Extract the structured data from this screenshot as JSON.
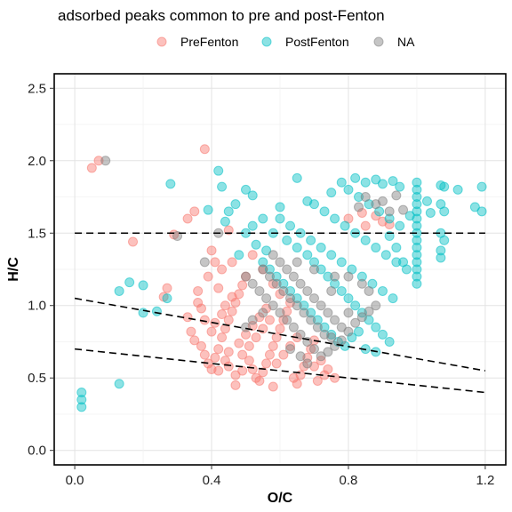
{
  "chart_data": {
    "type": "scatter",
    "title": "adsorbed peaks common to pre and post-Fenton",
    "xlabel": "O/C",
    "ylabel": "H/C",
    "xlim": [
      -0.06,
      1.26
    ],
    "ylim": [
      -0.1,
      2.6
    ],
    "xticks": [
      "0.0",
      "0.4",
      "0.8",
      "1.2"
    ],
    "yticks": [
      "0.0",
      "0.5",
      "1.0",
      "1.5",
      "2.0",
      "2.5"
    ],
    "grid": true,
    "legend_position": "top",
    "series": [
      {
        "name": "PreFenton",
        "color": "#F8766D",
        "points": [
          [
            0.05,
            1.95
          ],
          [
            0.07,
            2.0
          ],
          [
            0.38,
            2.08
          ],
          [
            0.17,
            1.44
          ],
          [
            0.29,
            1.49
          ],
          [
            0.27,
            1.12
          ],
          [
            0.26,
            1.06
          ],
          [
            0.33,
            1.6
          ],
          [
            0.35,
            1.65
          ],
          [
            0.4,
            1.38
          ],
          [
            0.45,
            1.52
          ],
          [
            0.42,
            1.12
          ],
          [
            0.36,
            1.02
          ],
          [
            0.33,
            0.92
          ],
          [
            0.34,
            0.82
          ],
          [
            0.35,
            0.76
          ],
          [
            0.37,
            0.72
          ],
          [
            0.38,
            0.66
          ],
          [
            0.39,
            0.6
          ],
          [
            0.4,
            0.56
          ],
          [
            0.41,
            0.64
          ],
          [
            0.42,
            0.7
          ],
          [
            0.43,
            0.78
          ],
          [
            0.44,
            0.84
          ],
          [
            0.45,
            0.9
          ],
          [
            0.46,
            0.96
          ],
          [
            0.47,
            1.02
          ],
          [
            0.48,
            1.08
          ],
          [
            0.49,
            1.14
          ],
          [
            0.5,
            1.2
          ],
          [
            0.51,
            0.62
          ],
          [
            0.52,
            0.56
          ],
          [
            0.53,
            0.5
          ],
          [
            0.54,
            0.48
          ],
          [
            0.55,
            0.54
          ],
          [
            0.56,
            0.6
          ],
          [
            0.57,
            0.66
          ],
          [
            0.58,
            0.72
          ],
          [
            0.59,
            0.78
          ],
          [
            0.6,
            0.84
          ],
          [
            0.61,
            0.9
          ],
          [
            0.62,
            0.96
          ],
          [
            0.63,
            1.02
          ],
          [
            0.64,
            0.5
          ],
          [
            0.65,
            0.46
          ],
          [
            0.66,
            0.52
          ],
          [
            0.67,
            0.58
          ],
          [
            0.68,
            0.64
          ],
          [
            0.69,
            0.7
          ],
          [
            0.7,
            0.76
          ],
          [
            0.72,
            0.62
          ],
          [
            0.74,
            0.56
          ],
          [
            0.76,
            0.5
          ],
          [
            0.47,
            0.45
          ],
          [
            0.58,
            0.44
          ],
          [
            0.4,
            0.82
          ],
          [
            0.41,
            0.88
          ],
          [
            0.43,
            0.94
          ],
          [
            0.44,
            1.0
          ],
          [
            0.46,
            1.06
          ],
          [
            0.48,
            0.74
          ],
          [
            0.5,
            0.8
          ],
          [
            0.52,
            0.86
          ],
          [
            0.54,
            0.92
          ],
          [
            0.56,
            0.98
          ],
          [
            0.45,
            0.68
          ],
          [
            0.49,
            0.66
          ],
          [
            0.51,
            0.72
          ],
          [
            0.53,
            0.78
          ],
          [
            0.55,
            0.84
          ],
          [
            0.57,
            0.9
          ],
          [
            0.59,
            0.6
          ],
          [
            0.61,
            0.66
          ],
          [
            0.63,
            0.72
          ],
          [
            0.65,
            0.78
          ],
          [
            0.38,
            0.9
          ],
          [
            0.37,
            0.98
          ],
          [
            0.36,
            1.1
          ],
          [
            0.39,
            1.2
          ],
          [
            0.41,
            1.3
          ],
          [
            0.43,
            1.25
          ],
          [
            0.46,
            1.3
          ],
          [
            0.52,
            1.35
          ],
          [
            0.55,
            1.25
          ],
          [
            0.58,
            1.15
          ],
          [
            0.6,
            1.08
          ],
          [
            0.45,
            0.58
          ],
          [
            0.47,
            0.52
          ],
          [
            0.49,
            0.55
          ],
          [
            0.44,
            0.62
          ],
          [
            0.42,
            0.55
          ],
          [
            0.7,
            0.58
          ],
          [
            0.73,
            0.52
          ],
          [
            0.71,
            0.48
          ],
          [
            0.84,
            1.64
          ],
          [
            0.88,
            1.62
          ],
          [
            0.9,
            1.58
          ],
          [
            0.8,
            1.6
          ],
          [
            0.92,
            1.56
          ],
          [
            0.85,
            1.55
          ]
        ]
      },
      {
        "name": "PostFenton",
        "color": "#00BFC4",
        "points": [
          [
            0.02,
            0.4
          ],
          [
            0.02,
            0.35
          ],
          [
            0.02,
            0.3
          ],
          [
            0.13,
            0.46
          ],
          [
            0.16,
            1.16
          ],
          [
            0.13,
            1.1
          ],
          [
            0.2,
            1.14
          ],
          [
            0.2,
            0.95
          ],
          [
            0.24,
            0.96
          ],
          [
            0.27,
            1.05
          ],
          [
            0.28,
            1.84
          ],
          [
            0.42,
            1.93
          ],
          [
            0.43,
            1.82
          ],
          [
            0.39,
            1.66
          ],
          [
            0.5,
            1.8
          ],
          [
            0.52,
            1.76
          ],
          [
            0.65,
            1.88
          ],
          [
            0.6,
            1.68
          ],
          [
            0.47,
            1.7
          ],
          [
            0.55,
            1.6
          ],
          [
            0.58,
            1.5
          ],
          [
            0.62,
            1.45
          ],
          [
            0.65,
            1.4
          ],
          [
            0.68,
            1.35
          ],
          [
            0.7,
            1.3
          ],
          [
            0.72,
            1.25
          ],
          [
            0.74,
            1.2
          ],
          [
            0.76,
            1.15
          ],
          [
            0.78,
            1.1
          ],
          [
            0.8,
            1.05
          ],
          [
            0.82,
            1.0
          ],
          [
            0.84,
            0.95
          ],
          [
            0.86,
            0.9
          ],
          [
            0.88,
            0.85
          ],
          [
            0.9,
            0.8
          ],
          [
            0.92,
            0.75
          ],
          [
            0.85,
            0.7
          ],
          [
            0.88,
            0.68
          ],
          [
            0.6,
            1.6
          ],
          [
            0.63,
            1.55
          ],
          [
            0.66,
            1.5
          ],
          [
            0.69,
            1.45
          ],
          [
            0.72,
            1.4
          ],
          [
            0.75,
            1.35
          ],
          [
            0.78,
            1.3
          ],
          [
            0.81,
            1.25
          ],
          [
            0.84,
            1.2
          ],
          [
            0.87,
            1.15
          ],
          [
            0.9,
            1.1
          ],
          [
            0.93,
            1.05
          ],
          [
            0.7,
            1.7
          ],
          [
            0.73,
            1.65
          ],
          [
            0.76,
            1.6
          ],
          [
            0.79,
            1.55
          ],
          [
            0.82,
            1.5
          ],
          [
            0.85,
            1.45
          ],
          [
            0.88,
            1.4
          ],
          [
            0.91,
            1.35
          ],
          [
            0.94,
            1.3
          ],
          [
            0.8,
            1.8
          ],
          [
            0.83,
            1.75
          ],
          [
            0.86,
            1.7
          ],
          [
            0.89,
            1.65
          ],
          [
            0.92,
            1.6
          ],
          [
            0.95,
            1.55
          ],
          [
            0.78,
            1.85
          ],
          [
            0.82,
            1.88
          ],
          [
            0.85,
            1.85
          ],
          [
            0.88,
            1.87
          ],
          [
            0.9,
            1.84
          ],
          [
            0.93,
            1.86
          ],
          [
            0.95,
            1.82
          ],
          [
            0.75,
            1.78
          ],
          [
            0.68,
            1.72
          ],
          [
            1.0,
            1.85
          ],
          [
            1.0,
            1.8
          ],
          [
            1.0,
            1.75
          ],
          [
            1.0,
            1.7
          ],
          [
            1.0,
            1.65
          ],
          [
            1.0,
            1.6
          ],
          [
            1.0,
            1.55
          ],
          [
            1.0,
            1.5
          ],
          [
            1.0,
            1.45
          ],
          [
            1.0,
            1.4
          ],
          [
            1.0,
            1.35
          ],
          [
            1.0,
            1.3
          ],
          [
            1.0,
            1.25
          ],
          [
            1.0,
            1.2
          ],
          [
            1.0,
            1.15
          ],
          [
            1.07,
            1.83
          ],
          [
            1.08,
            1.82
          ],
          [
            1.07,
            1.7
          ],
          [
            1.08,
            1.65
          ],
          [
            1.07,
            1.5
          ],
          [
            1.08,
            1.45
          ],
          [
            1.07,
            1.38
          ],
          [
            1.07,
            1.33
          ],
          [
            1.12,
            1.8
          ],
          [
            1.17,
            1.68
          ],
          [
            1.19,
            1.65
          ],
          [
            1.19,
            1.82
          ],
          [
            1.03,
            1.72
          ],
          [
            1.04,
            1.64
          ],
          [
            0.96,
            1.3
          ],
          [
            0.97,
            1.25
          ],
          [
            0.94,
            1.4
          ],
          [
            0.92,
            1.48
          ],
          [
            0.98,
            1.62
          ],
          [
            0.55,
            1.3
          ],
          [
            0.57,
            1.25
          ],
          [
            0.59,
            1.2
          ],
          [
            0.61,
            1.15
          ],
          [
            0.63,
            1.1
          ],
          [
            0.65,
            1.05
          ],
          [
            0.67,
            1.0
          ],
          [
            0.69,
            0.95
          ],
          [
            0.71,
            0.9
          ],
          [
            0.73,
            0.85
          ],
          [
            0.75,
            0.8
          ],
          [
            0.77,
            0.75
          ],
          [
            0.79,
            0.72
          ],
          [
            0.81,
            0.78
          ],
          [
            0.83,
            0.82
          ],
          [
            0.53,
            1.42
          ],
          [
            0.56,
            1.38
          ],
          [
            0.5,
            1.5
          ],
          [
            0.48,
            1.35
          ],
          [
            0.52,
            1.55
          ],
          [
            0.44,
            1.58
          ],
          [
            0.45,
            1.65
          ]
        ]
      },
      {
        "name": "NA",
        "color": "#7F7F7F",
        "points": [
          [
            0.09,
            2.0
          ],
          [
            0.3,
            1.48
          ],
          [
            0.42,
            1.5
          ],
          [
            0.38,
            1.3
          ],
          [
            0.5,
            1.2
          ],
          [
            0.52,
            1.15
          ],
          [
            0.54,
            1.1
          ],
          [
            0.56,
            1.05
          ],
          [
            0.58,
            1.0
          ],
          [
            0.6,
            0.95
          ],
          [
            0.62,
            0.9
          ],
          [
            0.64,
            0.85
          ],
          [
            0.66,
            0.8
          ],
          [
            0.68,
            0.75
          ],
          [
            0.7,
            0.7
          ],
          [
            0.72,
            0.65
          ],
          [
            0.74,
            0.68
          ],
          [
            0.76,
            0.72
          ],
          [
            0.78,
            0.76
          ],
          [
            0.55,
            1.25
          ],
          [
            0.57,
            1.2
          ],
          [
            0.59,
            1.15
          ],
          [
            0.61,
            1.1
          ],
          [
            0.63,
            1.05
          ],
          [
            0.65,
            1.0
          ],
          [
            0.67,
            0.95
          ],
          [
            0.69,
            0.9
          ],
          [
            0.71,
            0.85
          ],
          [
            0.73,
            0.8
          ],
          [
            0.75,
            0.78
          ],
          [
            0.6,
            1.3
          ],
          [
            0.62,
            1.25
          ],
          [
            0.64,
            1.2
          ],
          [
            0.66,
            1.15
          ],
          [
            0.68,
            1.1
          ],
          [
            0.7,
            1.05
          ],
          [
            0.72,
            1.0
          ],
          [
            0.74,
            0.95
          ],
          [
            0.76,
            0.9
          ],
          [
            0.78,
            0.85
          ],
          [
            0.8,
            0.82
          ],
          [
            0.82,
            0.88
          ],
          [
            0.84,
            0.92
          ],
          [
            0.86,
            0.96
          ],
          [
            0.88,
            1.0
          ],
          [
            0.86,
            1.1
          ],
          [
            0.84,
            1.15
          ],
          [
            0.8,
            1.2
          ],
          [
            0.85,
            1.75
          ],
          [
            0.9,
            1.72
          ],
          [
            0.94,
            1.76
          ],
          [
            0.92,
            1.65
          ],
          [
            0.88,
            1.7
          ],
          [
            0.83,
            1.68
          ],
          [
            0.96,
            1.66
          ],
          [
            0.58,
            1.35
          ],
          [
            0.65,
            1.3
          ],
          [
            0.7,
            1.25
          ],
          [
            0.76,
            1.2
          ],
          [
            0.52,
            0.9
          ],
          [
            0.5,
            0.85
          ],
          [
            0.63,
            0.7
          ],
          [
            0.66,
            0.65
          ],
          [
            0.68,
            0.6
          ],
          [
            0.8,
            0.95
          ],
          [
            0.75,
            1.1
          ],
          [
            0.55,
            0.95
          ]
        ]
      }
    ],
    "reference_lines": [
      {
        "x": [
          0.0,
          1.2
        ],
        "y": [
          1.5,
          1.5
        ]
      },
      {
        "x": [
          0.0,
          1.2
        ],
        "y": [
          1.05,
          0.55
        ]
      },
      {
        "x": [
          0.0,
          1.2
        ],
        "y": [
          0.7,
          0.4
        ]
      }
    ]
  }
}
